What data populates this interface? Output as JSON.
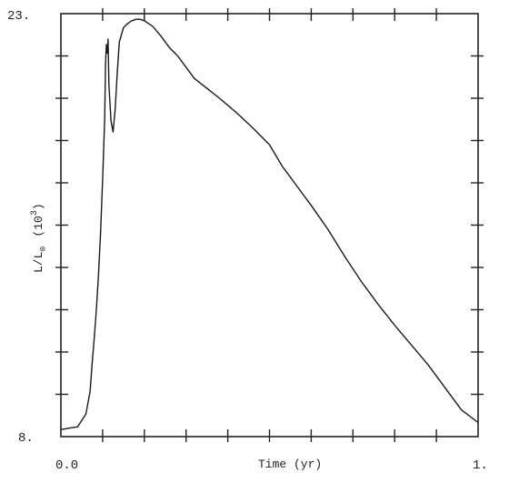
{
  "chart_data": {
    "type": "line",
    "title": "",
    "xlabel": "Time (yr)",
    "ylabel": "L/L",
    "ylabel_subscript": "⊙",
    "ylabel_unit": "(10",
    "ylabel_unit_sup": "3",
    "ylabel_unit_close": ")",
    "xlim": [
      0.0,
      1.0
    ],
    "ylim": [
      8,
      23
    ],
    "x_tick_labels": [
      {
        "value": 0.0,
        "label": "0.0"
      },
      {
        "value": 1.0,
        "label": "1."
      }
    ],
    "y_tick_labels": [
      {
        "value": 23,
        "label": "23."
      },
      {
        "value": 8,
        "label": "8."
      }
    ],
    "x_minor_ticks": [
      0.1,
      0.2,
      0.3,
      0.4,
      0.5,
      0.6,
      0.7,
      0.8,
      0.9
    ],
    "y_minor_ticks": [
      9.5,
      11,
      12.5,
      14,
      15.5,
      17,
      18.5,
      20,
      21.5
    ],
    "grid": false,
    "series": [
      {
        "x": [
          0.0,
          0.02,
          0.04,
          0.06,
          0.07,
          0.075,
          0.08,
          0.085,
          0.09,
          0.095,
          0.1,
          0.105,
          0.107,
          0.109,
          0.111,
          0.113,
          0.115,
          0.12,
          0.125,
          0.13,
          0.135,
          0.14,
          0.15,
          0.16,
          0.17,
          0.18,
          0.19,
          0.2,
          0.22,
          0.24,
          0.26,
          0.28,
          0.3,
          0.32,
          0.35,
          0.38,
          0.42,
          0.46,
          0.5,
          0.53,
          0.56,
          0.6,
          0.64,
          0.68,
          0.72,
          0.76,
          0.8,
          0.84,
          0.88,
          0.92,
          0.96,
          1.0
        ],
        "y": [
          8.25,
          8.3,
          8.35,
          8.8,
          9.6,
          10.6,
          11.5,
          12.5,
          13.7,
          15.2,
          17.1,
          19.3,
          21.2,
          21.9,
          21.6,
          22.1,
          20.5,
          19.2,
          18.8,
          19.6,
          20.9,
          22.0,
          22.5,
          22.65,
          22.75,
          22.8,
          22.8,
          22.75,
          22.55,
          22.2,
          21.8,
          21.5,
          21.1,
          20.7,
          20.35,
          20.0,
          19.5,
          18.95,
          18.35,
          17.6,
          17.0,
          16.2,
          15.35,
          14.4,
          13.5,
          12.7,
          11.95,
          11.25,
          10.55,
          9.75,
          8.95,
          8.5
        ]
      }
    ]
  }
}
